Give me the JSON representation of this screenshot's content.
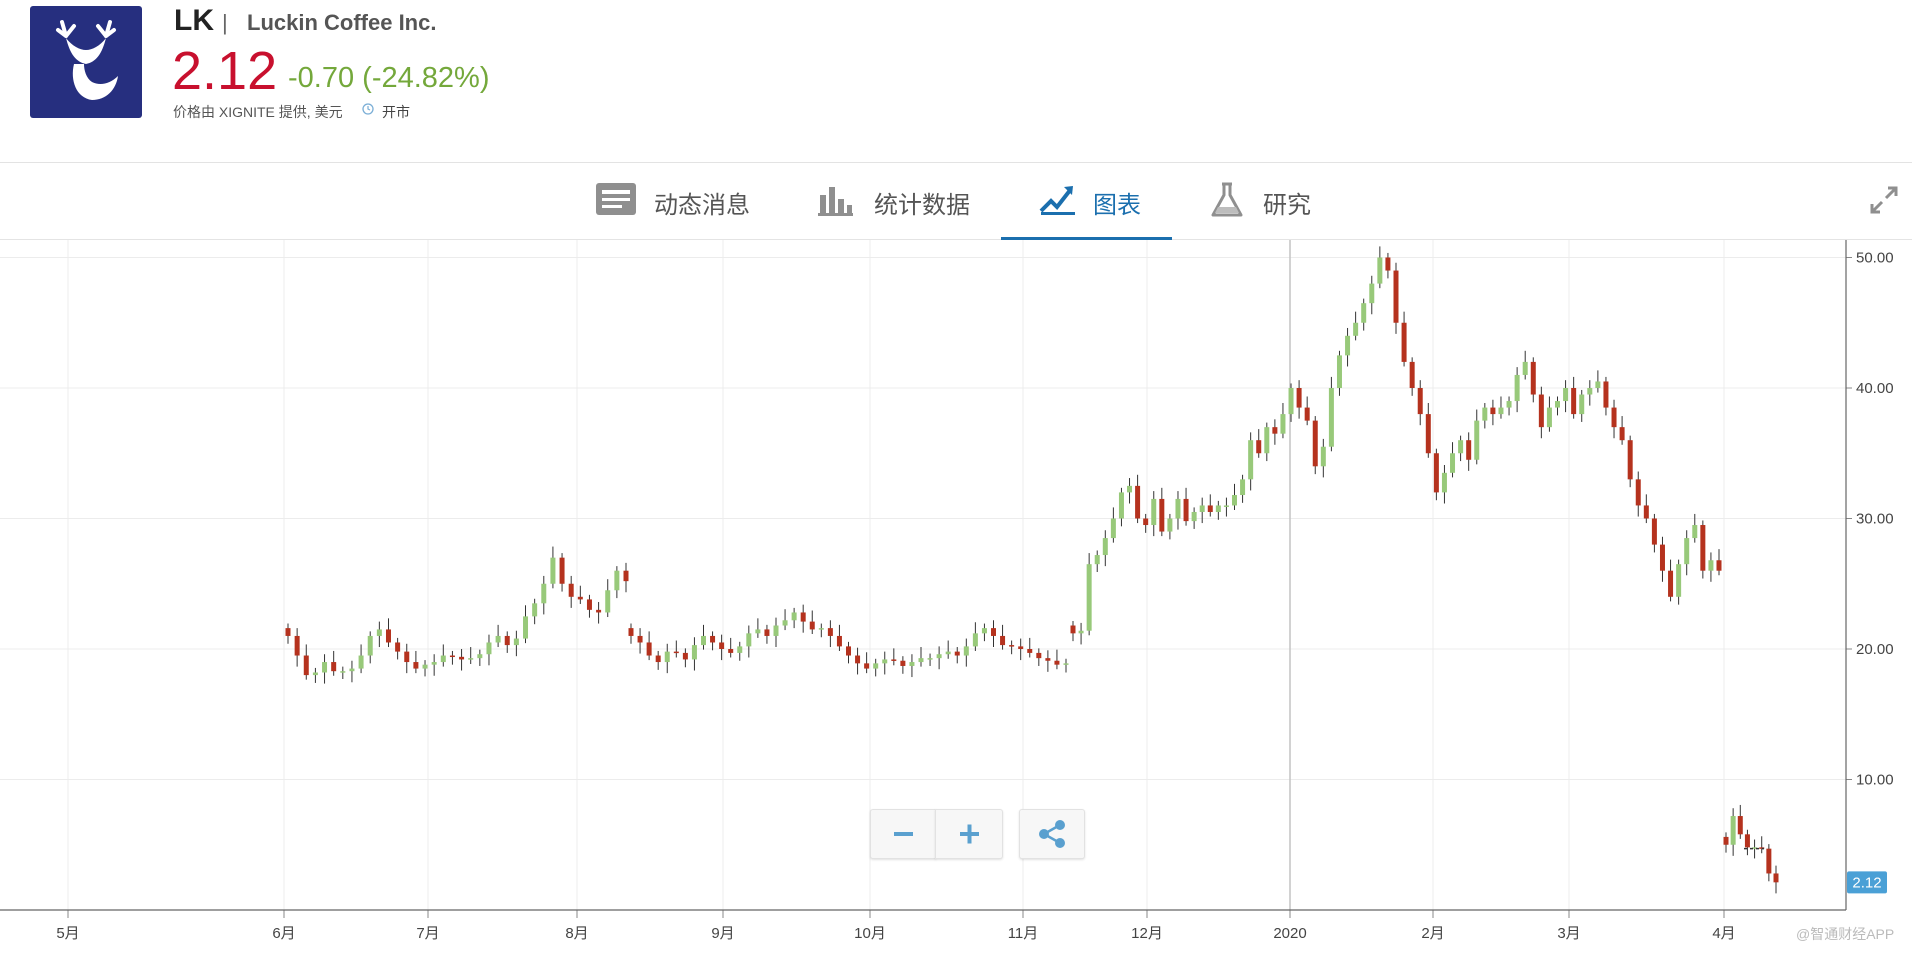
{
  "header": {
    "ticker": "LK",
    "separator": "|",
    "company": "Luckin Coffee Inc.",
    "price": "2.12",
    "change": "-0.70 (-24.82%)",
    "source": "价格由 XIGNITE 提供, 美元",
    "market_status": "开市",
    "price_color": "#c8102e",
    "change_color": "#74a83b",
    "logo_color": "#262f7f"
  },
  "tabs": [
    {
      "label": "动态消息",
      "icon": "newspaper-icon",
      "active": false
    },
    {
      "label": "统计数据",
      "icon": "bar-chart-icon",
      "active": false
    },
    {
      "label": "图表",
      "icon": "trend-chart-icon",
      "active": true
    },
    {
      "label": "研究",
      "icon": "flask-icon",
      "active": false
    }
  ],
  "controls": {
    "zoom_out": "zoom-out-icon",
    "zoom_in": "zoom-in-icon",
    "share": "share-icon",
    "expand": "expand-icon"
  },
  "watermark": "@智通财经APP",
  "chart_data": {
    "type": "candlestick",
    "title": "",
    "xlabel": "",
    "ylabel": "",
    "ylim": [
      0,
      52.5
    ],
    "y_ticks": [
      "10.00",
      "20.00",
      "30.00",
      "40.00",
      "50.00"
    ],
    "x_labels": [
      "5月",
      "6月",
      "7月",
      "8月",
      "9月",
      "10月",
      "11月",
      "12月",
      "2020",
      "2月",
      "3月",
      "4月"
    ],
    "last_price_label": "2.12",
    "grid": true,
    "up_color": "#98c97a",
    "down_color": "#b5321e",
    "segments": [
      {
        "start": "6月",
        "close": [
          21,
          19.5,
          18,
          18.2,
          19,
          18.3,
          18.3,
          18.5,
          19.5,
          21,
          21.5,
          20.5,
          19.8,
          19,
          18.5,
          18.8,
          19,
          19.5,
          19.4,
          19.2,
          19.3,
          19.6,
          20.5,
          21,
          20.3,
          20.8,
          22.5,
          23.5,
          25,
          27,
          25,
          24,
          23.8,
          23,
          22.8,
          24.5,
          26,
          25.2
        ]
      },
      {
        "start": "8月",
        "close": [
          21,
          20.5,
          19.5,
          19,
          19.8,
          19.7,
          19.2,
          20.3,
          21,
          20.5,
          20,
          19.7,
          20.2,
          21.2,
          21.5,
          21,
          21.8,
          22.2,
          22.8,
          22.1,
          21.5,
          21.6,
          21,
          20.2,
          19.5,
          18.9,
          18.5,
          18.9,
          19.2,
          19.1,
          18.7,
          19,
          19.3,
          19.3,
          19.6,
          19.8,
          19.5,
          20.2,
          21.2,
          21.6,
          21,
          20.3,
          20.2,
          20,
          19.7,
          19.3,
          19.1,
          18.8,
          18.9
        ]
      },
      {
        "start": "11月中",
        "close": [
          21.2,
          21.4,
          26.5,
          27.2,
          28.5,
          30,
          32,
          32.5,
          30,
          29.5,
          31.5,
          29,
          30,
          31.5,
          29.8,
          30.5,
          31,
          30.5,
          31,
          31,
          31.8,
          33,
          36,
          35,
          37,
          36.5,
          38,
          40,
          38.5,
          37.5,
          34,
          35.5,
          40,
          42.5,
          44,
          45,
          46.5,
          48,
          50,
          49,
          45,
          42,
          40,
          38,
          35,
          32,
          33.5,
          35,
          36,
          34.5,
          37.5,
          38.5,
          38,
          38.5,
          39,
          41,
          42,
          39.5,
          37,
          38.5,
          39,
          40,
          38,
          39.5,
          40,
          40.5,
          38.5,
          37,
          36,
          33,
          31,
          30,
          28,
          26,
          24,
          26.5,
          28.5,
          29.5,
          26,
          26.8,
          26
        ]
      },
      {
        "start": "4月初",
        "close": [
          5,
          7.2,
          5.8,
          4.8,
          4.8,
          4.7,
          2.8,
          2.12
        ]
      }
    ]
  }
}
